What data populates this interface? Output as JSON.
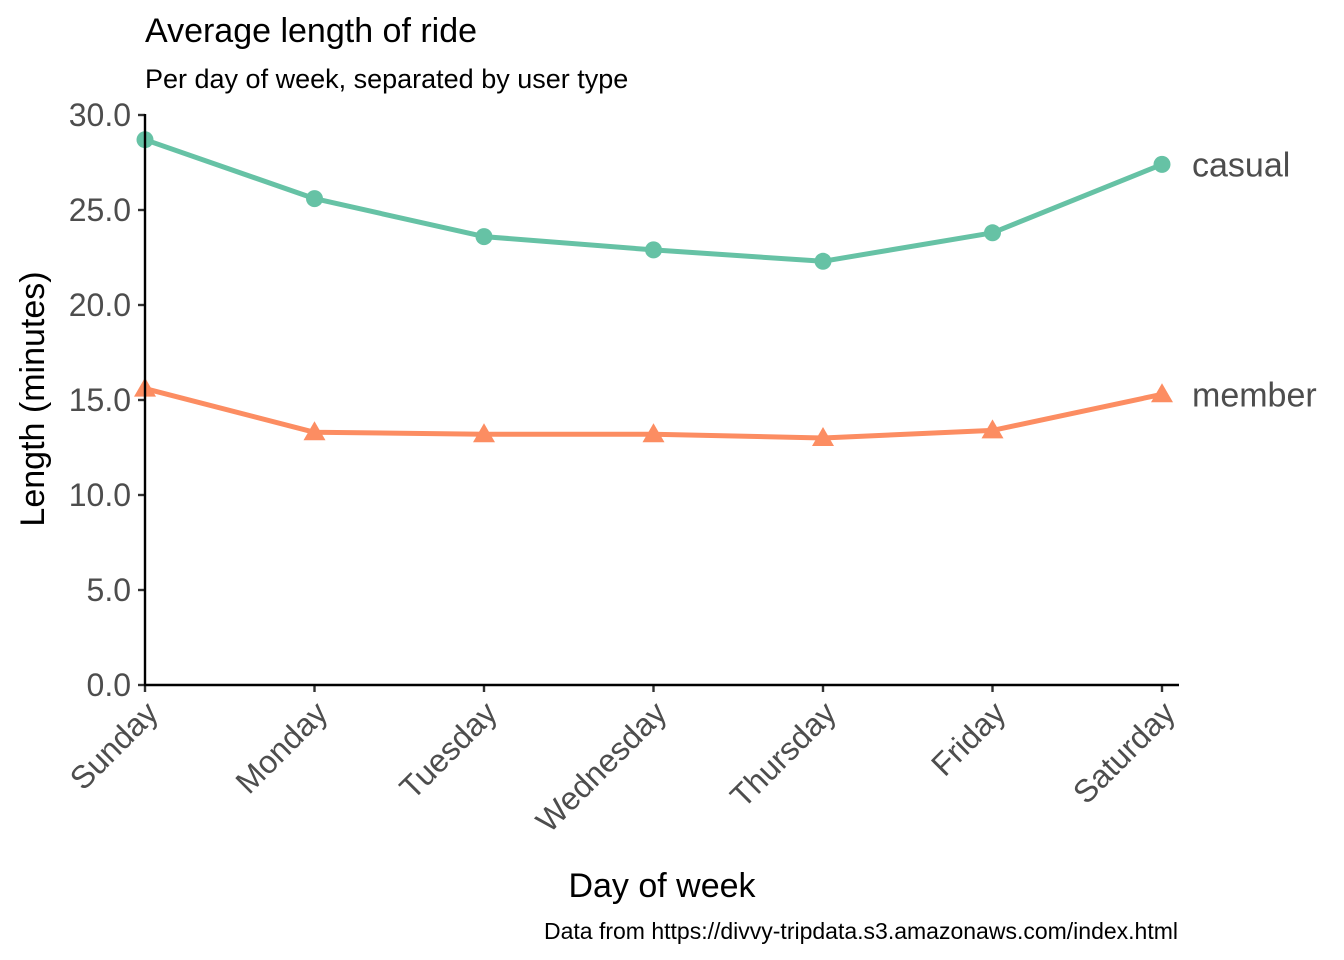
{
  "chart_data": {
    "type": "line",
    "title": "Average length of ride",
    "subtitle": "Per day of week, separated by user type",
    "xlabel": "Day of week",
    "ylabel": "Length (minutes)",
    "caption": "Data from https://divvy-tripdata.s3.amazonaws.com/index.html",
    "categories": [
      "Sunday",
      "Monday",
      "Tuesday",
      "Wednesday",
      "Thursday",
      "Friday",
      "Saturday"
    ],
    "ylim": [
      0,
      30
    ],
    "yticks": [
      0,
      5,
      10,
      15,
      20,
      25,
      30
    ],
    "ytick_labels": [
      "0.0",
      "5.0",
      "10.0",
      "15.0",
      "20.0",
      "25.0",
      "30.0"
    ],
    "grid": false,
    "legend": "direct labels at right end of lines",
    "series": [
      {
        "name": "casual",
        "values": [
          28.7,
          25.6,
          23.6,
          22.9,
          22.3,
          23.8,
          27.4
        ],
        "color": "#66c2a5",
        "marker": "circle"
      },
      {
        "name": "member",
        "values": [
          15.6,
          13.3,
          13.2,
          13.2,
          13.0,
          13.4,
          15.3
        ],
        "color": "#fc8d62",
        "marker": "triangle"
      }
    ]
  }
}
